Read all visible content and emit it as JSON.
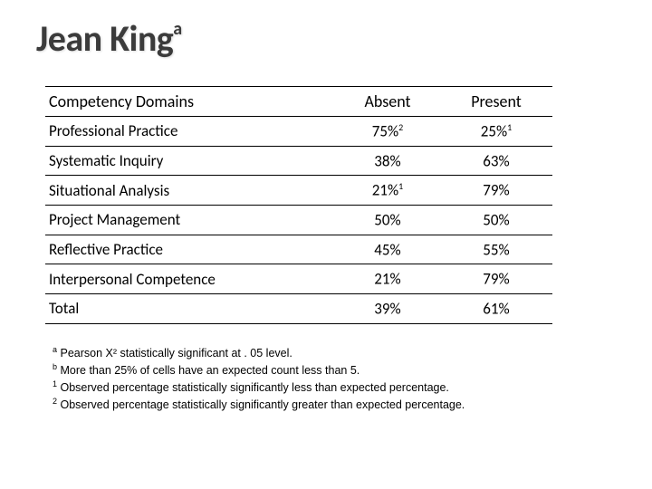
{
  "title": {
    "text": "Jean King",
    "superscript": "a",
    "color": "#3b3b3b",
    "fontsize": 40
  },
  "table": {
    "border_color": "#000000",
    "fontsize": 17,
    "columns": [
      "Competency Domains",
      "Absent",
      "Present"
    ],
    "rows": [
      {
        "label": "Professional Practice",
        "absent": "75%",
        "absent_sup": "2",
        "present": "25%",
        "present_sup": "1"
      },
      {
        "label": "Systematic Inquiry",
        "absent": "38%",
        "absent_sup": "",
        "present": "63%",
        "present_sup": ""
      },
      {
        "label": "Situational Analysis",
        "absent": "21%",
        "absent_sup": "1",
        "present": "79%",
        "present_sup": ""
      },
      {
        "label": "Project Management",
        "absent": "50%",
        "absent_sup": "",
        "present": "50%",
        "present_sup": ""
      },
      {
        "label": "Reflective Practice",
        "absent": "45%",
        "absent_sup": "",
        "present": "55%",
        "present_sup": ""
      },
      {
        "label": "Interpersonal Competence",
        "absent": "21%",
        "absent_sup": "",
        "present": "79%",
        "present_sup": ""
      },
      {
        "label": "Total",
        "absent": "39%",
        "absent_sup": "",
        "present": "61%",
        "present_sup": ""
      }
    ]
  },
  "footnotes": {
    "fontsize": 12.5,
    "items": [
      {
        "marker": "a",
        "text": " Pearson X² statistically significant at . 05 level."
      },
      {
        "marker": "b",
        "text": " More than 25% of cells have an expected count less than 5."
      },
      {
        "marker": "1",
        "text": " Observed percentage statistically significantly less than expected percentage."
      },
      {
        "marker": "2",
        "text": " Observed percentage statistically significantly greater than expected percentage."
      }
    ]
  },
  "background_color": "#ffffff"
}
